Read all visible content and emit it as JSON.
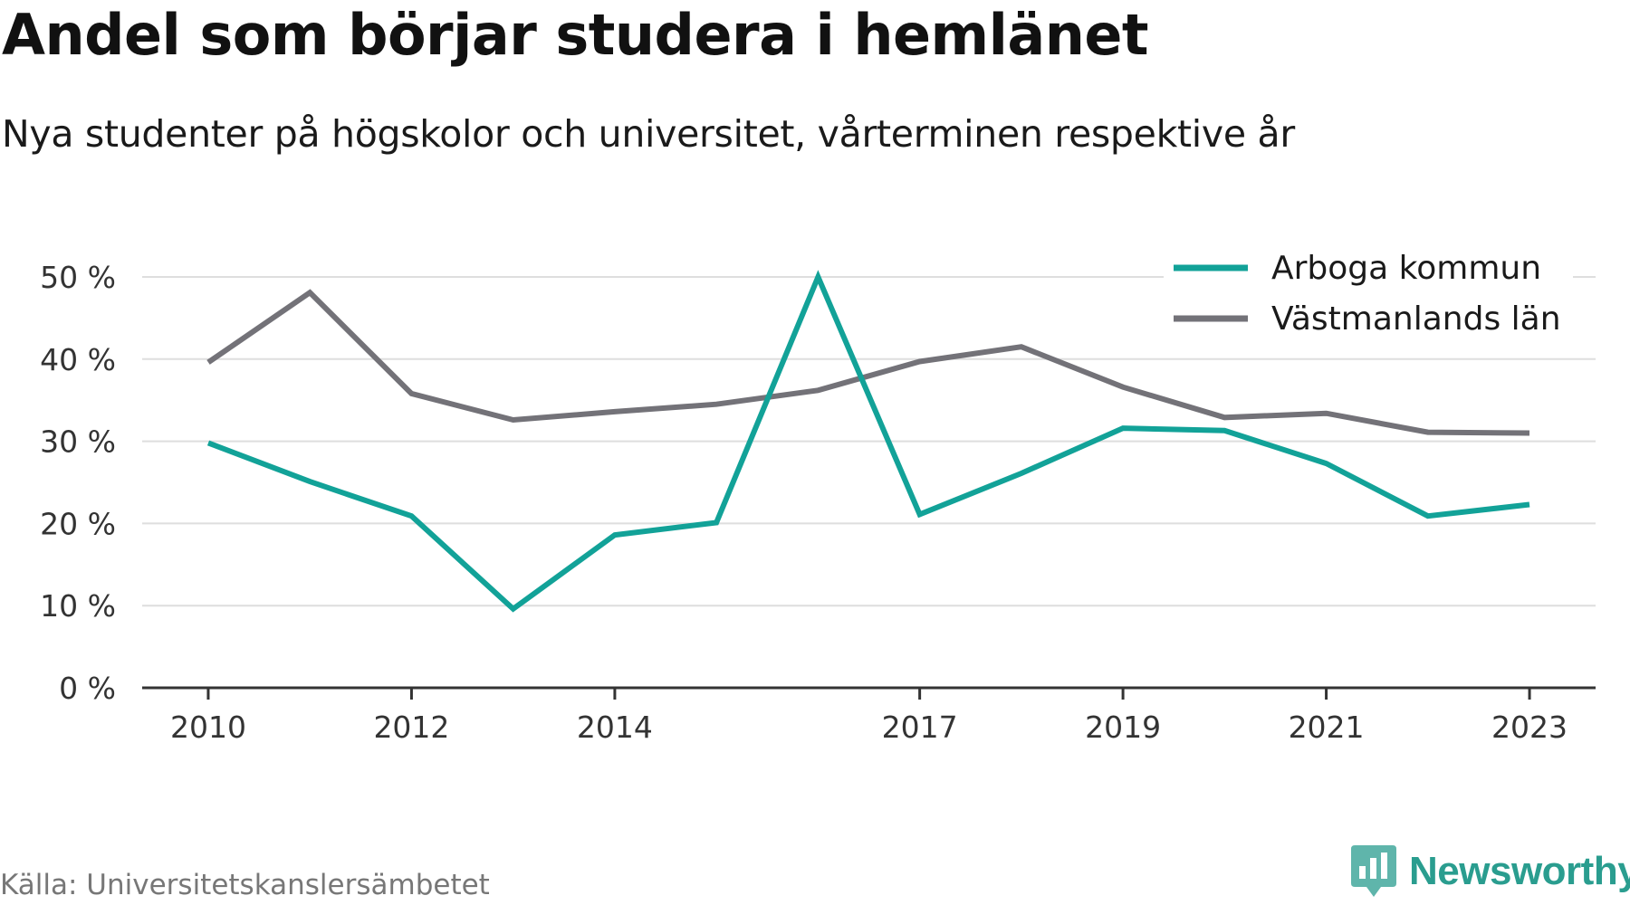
{
  "title": "Andel som börjar studera i hemlänet",
  "subtitle": "Nya studenter på högskolor och universitet, vårterminen respektive år",
  "source": "Källa: Universitetskanslersämbetet",
  "brand": "Newsworthy",
  "colors": {
    "arboga": "#12a298",
    "vastmanland": "#737278",
    "grid": "#dedede",
    "axis": "#333333"
  },
  "chart_data": {
    "type": "line",
    "title": "Andel som börjar studera i hemlänet",
    "subtitle": "Nya studenter på högskolor och universitet, vårterminen respektive år",
    "x": [
      2010,
      2011,
      2012,
      2013,
      2014,
      2015,
      2016,
      2017,
      2018,
      2019,
      2020,
      2021,
      2022,
      2023
    ],
    "x_tick_labels": [
      "2010",
      "2012",
      "2014",
      "2017",
      "2019",
      "2021",
      "2023"
    ],
    "x_ticks": [
      2010,
      2012,
      2014,
      2017,
      2019,
      2021,
      2023
    ],
    "y_ticks": [
      0,
      10,
      20,
      30,
      40,
      50
    ],
    "y_tick_labels": [
      "0 %",
      "10 %",
      "20 %",
      "30 %",
      "40 %",
      "50 %"
    ],
    "ylim": [
      0,
      50
    ],
    "xlim": [
      2009.35,
      2023.65
    ],
    "grid": true,
    "legend_position": "top-right",
    "series": [
      {
        "name": "Arboga kommun",
        "color": "#12a298",
        "values": [
          29.8,
          25.1,
          20.9,
          9.6,
          18.6,
          20.1,
          50.0,
          21.1,
          26.1,
          31.6,
          31.3,
          27.3,
          20.9,
          22.3
        ]
      },
      {
        "name": "Västmanlands län",
        "color": "#737278",
        "values": [
          39.6,
          48.1,
          35.8,
          32.6,
          33.6,
          34.5,
          36.2,
          39.7,
          41.5,
          36.6,
          32.9,
          33.4,
          31.1,
          31.0
        ]
      }
    ]
  }
}
